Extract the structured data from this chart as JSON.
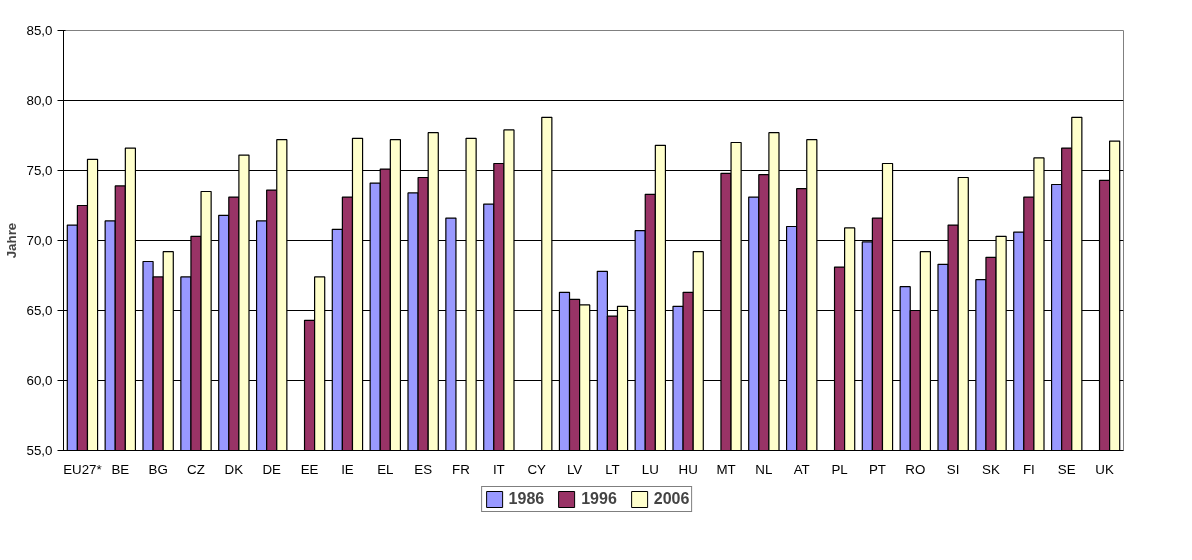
{
  "chart_data": {
    "type": "bar",
    "ylabel": "Jahre",
    "categories": [
      "EU27*",
      "BE",
      "BG",
      "CZ",
      "DK",
      "DE",
      "EE",
      "IE",
      "EL",
      "ES",
      "FR",
      "IT",
      "CY",
      "LV",
      "LT",
      "LU",
      "HU",
      "MT",
      "NL",
      "AT",
      "PL",
      "PT",
      "RO",
      "SI",
      "SK",
      "FI",
      "SE",
      "UK"
    ],
    "series": [
      {
        "name": "1986",
        "color": "#9999ff",
        "values": [
          71.1,
          71.4,
          68.5,
          67.4,
          71.8,
          71.4,
          null,
          70.8,
          74.1,
          73.4,
          71.6,
          72.6,
          null,
          66.3,
          67.8,
          70.7,
          65.3,
          null,
          73.1,
          71.0,
          null,
          69.9,
          66.7,
          68.3,
          67.2,
          70.6,
          74.0,
          null
        ]
      },
      {
        "name": "1996",
        "color": "#993366",
        "values": [
          72.5,
          73.9,
          67.4,
          70.3,
          73.1,
          73.6,
          64.3,
          73.1,
          75.1,
          74.5,
          null,
          75.5,
          null,
          65.8,
          64.6,
          73.3,
          66.3,
          74.8,
          74.7,
          73.7,
          68.1,
          71.6,
          65.0,
          71.1,
          68.8,
          73.1,
          76.6,
          74.3
        ]
      },
      {
        "name": "2006",
        "color": "#ffffcc",
        "values": [
          75.8,
          76.6,
          69.2,
          73.5,
          76.1,
          77.2,
          67.4,
          77.3,
          77.2,
          77.7,
          77.3,
          77.9,
          78.8,
          65.4,
          65.3,
          76.8,
          69.2,
          77.0,
          77.7,
          77.2,
          70.9,
          75.5,
          69.2,
          74.5,
          70.3,
          75.9,
          78.8,
          77.1
        ]
      }
    ],
    "ylim": [
      55,
      85
    ],
    "yticks": [
      {
        "value": 55,
        "label": "55,0"
      },
      {
        "value": 60,
        "label": "60,0"
      },
      {
        "value": 65,
        "label": "65,0"
      },
      {
        "value": 70,
        "label": "70,0"
      },
      {
        "value": 75,
        "label": "75,0"
      },
      {
        "value": 80,
        "label": "80,0"
      },
      {
        "value": 85,
        "label": "85,0"
      }
    ],
    "grid": "y",
    "legend": "bottom"
  }
}
